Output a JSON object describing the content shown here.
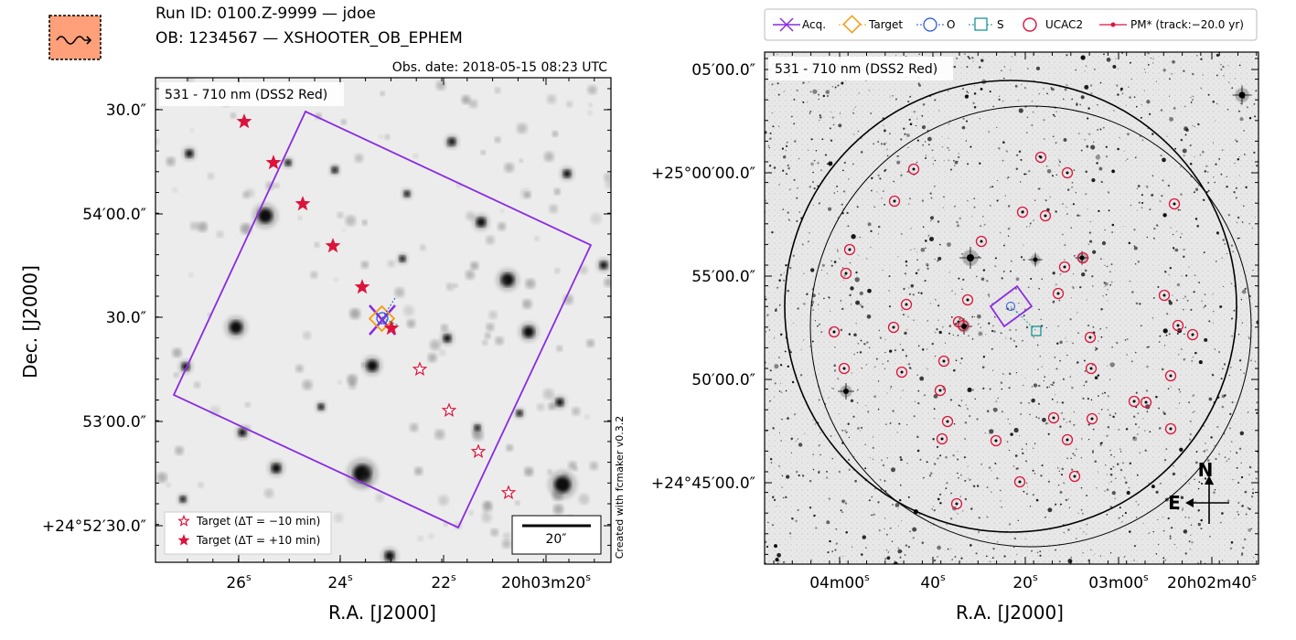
{
  "header": {
    "run_id": "Run ID: 0100.Z-9999 — jdoe",
    "ob_line": "OB: 1234567 — XSHOOTER_OB_EPHEM",
    "obs_date": "Obs. date: 2018-05-15 08:23 UTC"
  },
  "left_panel": {
    "band_label": "531 - 710 nm (DSS2 Red)",
    "xlabel": "R.A. [J2000]",
    "ylabel": "Dec. [J2000]",
    "x_ticks": [
      "26",
      "24",
      "22",
      "20h03m20"
    ],
    "x_tick_suffix": "s",
    "y_ticks": [
      "30.0″",
      "54′00.0″",
      "30.0″",
      "53′00.0″",
      "+24°52′30.0″"
    ],
    "scale_bar_label": "20″",
    "credit": "Created with fcmaker v0.3.2",
    "legend": [
      {
        "label": "Target (ΔT = −10 min)",
        "marker": "open-star"
      },
      {
        "label": "Target (ΔT = +10 min)",
        "marker": "filled-star"
      }
    ]
  },
  "right_panel": {
    "band_label": "531 - 710 nm (DSS2 Red)",
    "xlabel": "R.A. [J2000]",
    "x_ticks": [
      "04m00",
      "40",
      "20",
      "03m00",
      "20h02m40"
    ],
    "x_tick_suffix": "s",
    "y_ticks": [
      "05′00.0″",
      "+25°00′00.0″",
      "55′00.0″",
      "50′00.0″",
      "+24°45′00.0″"
    ],
    "compass": {
      "north": "N",
      "east": "E"
    },
    "legend": [
      {
        "label": "Acq.",
        "marker": "acq-cross"
      },
      {
        "label": "Target",
        "marker": "diamond"
      },
      {
        "label": "O",
        "marker": "circle-dotted"
      },
      {
        "label": "S",
        "marker": "square-dotted"
      },
      {
        "label": "UCAC2",
        "marker": "red-circle"
      },
      {
        "label": "PM* (track:−20.0 yr)",
        "marker": "pm-line"
      }
    ]
  },
  "colors": {
    "acq": "#8a2be2",
    "target": "#f39c12",
    "obj_o": "#1f4fd8",
    "sky_s": "#0a8a8a",
    "ucac2": "#dc143c",
    "track": "#dc143c",
    "logo_fill": "#ffa07a"
  },
  "logo_icon": "wavy-arrow-stamp-icon"
}
